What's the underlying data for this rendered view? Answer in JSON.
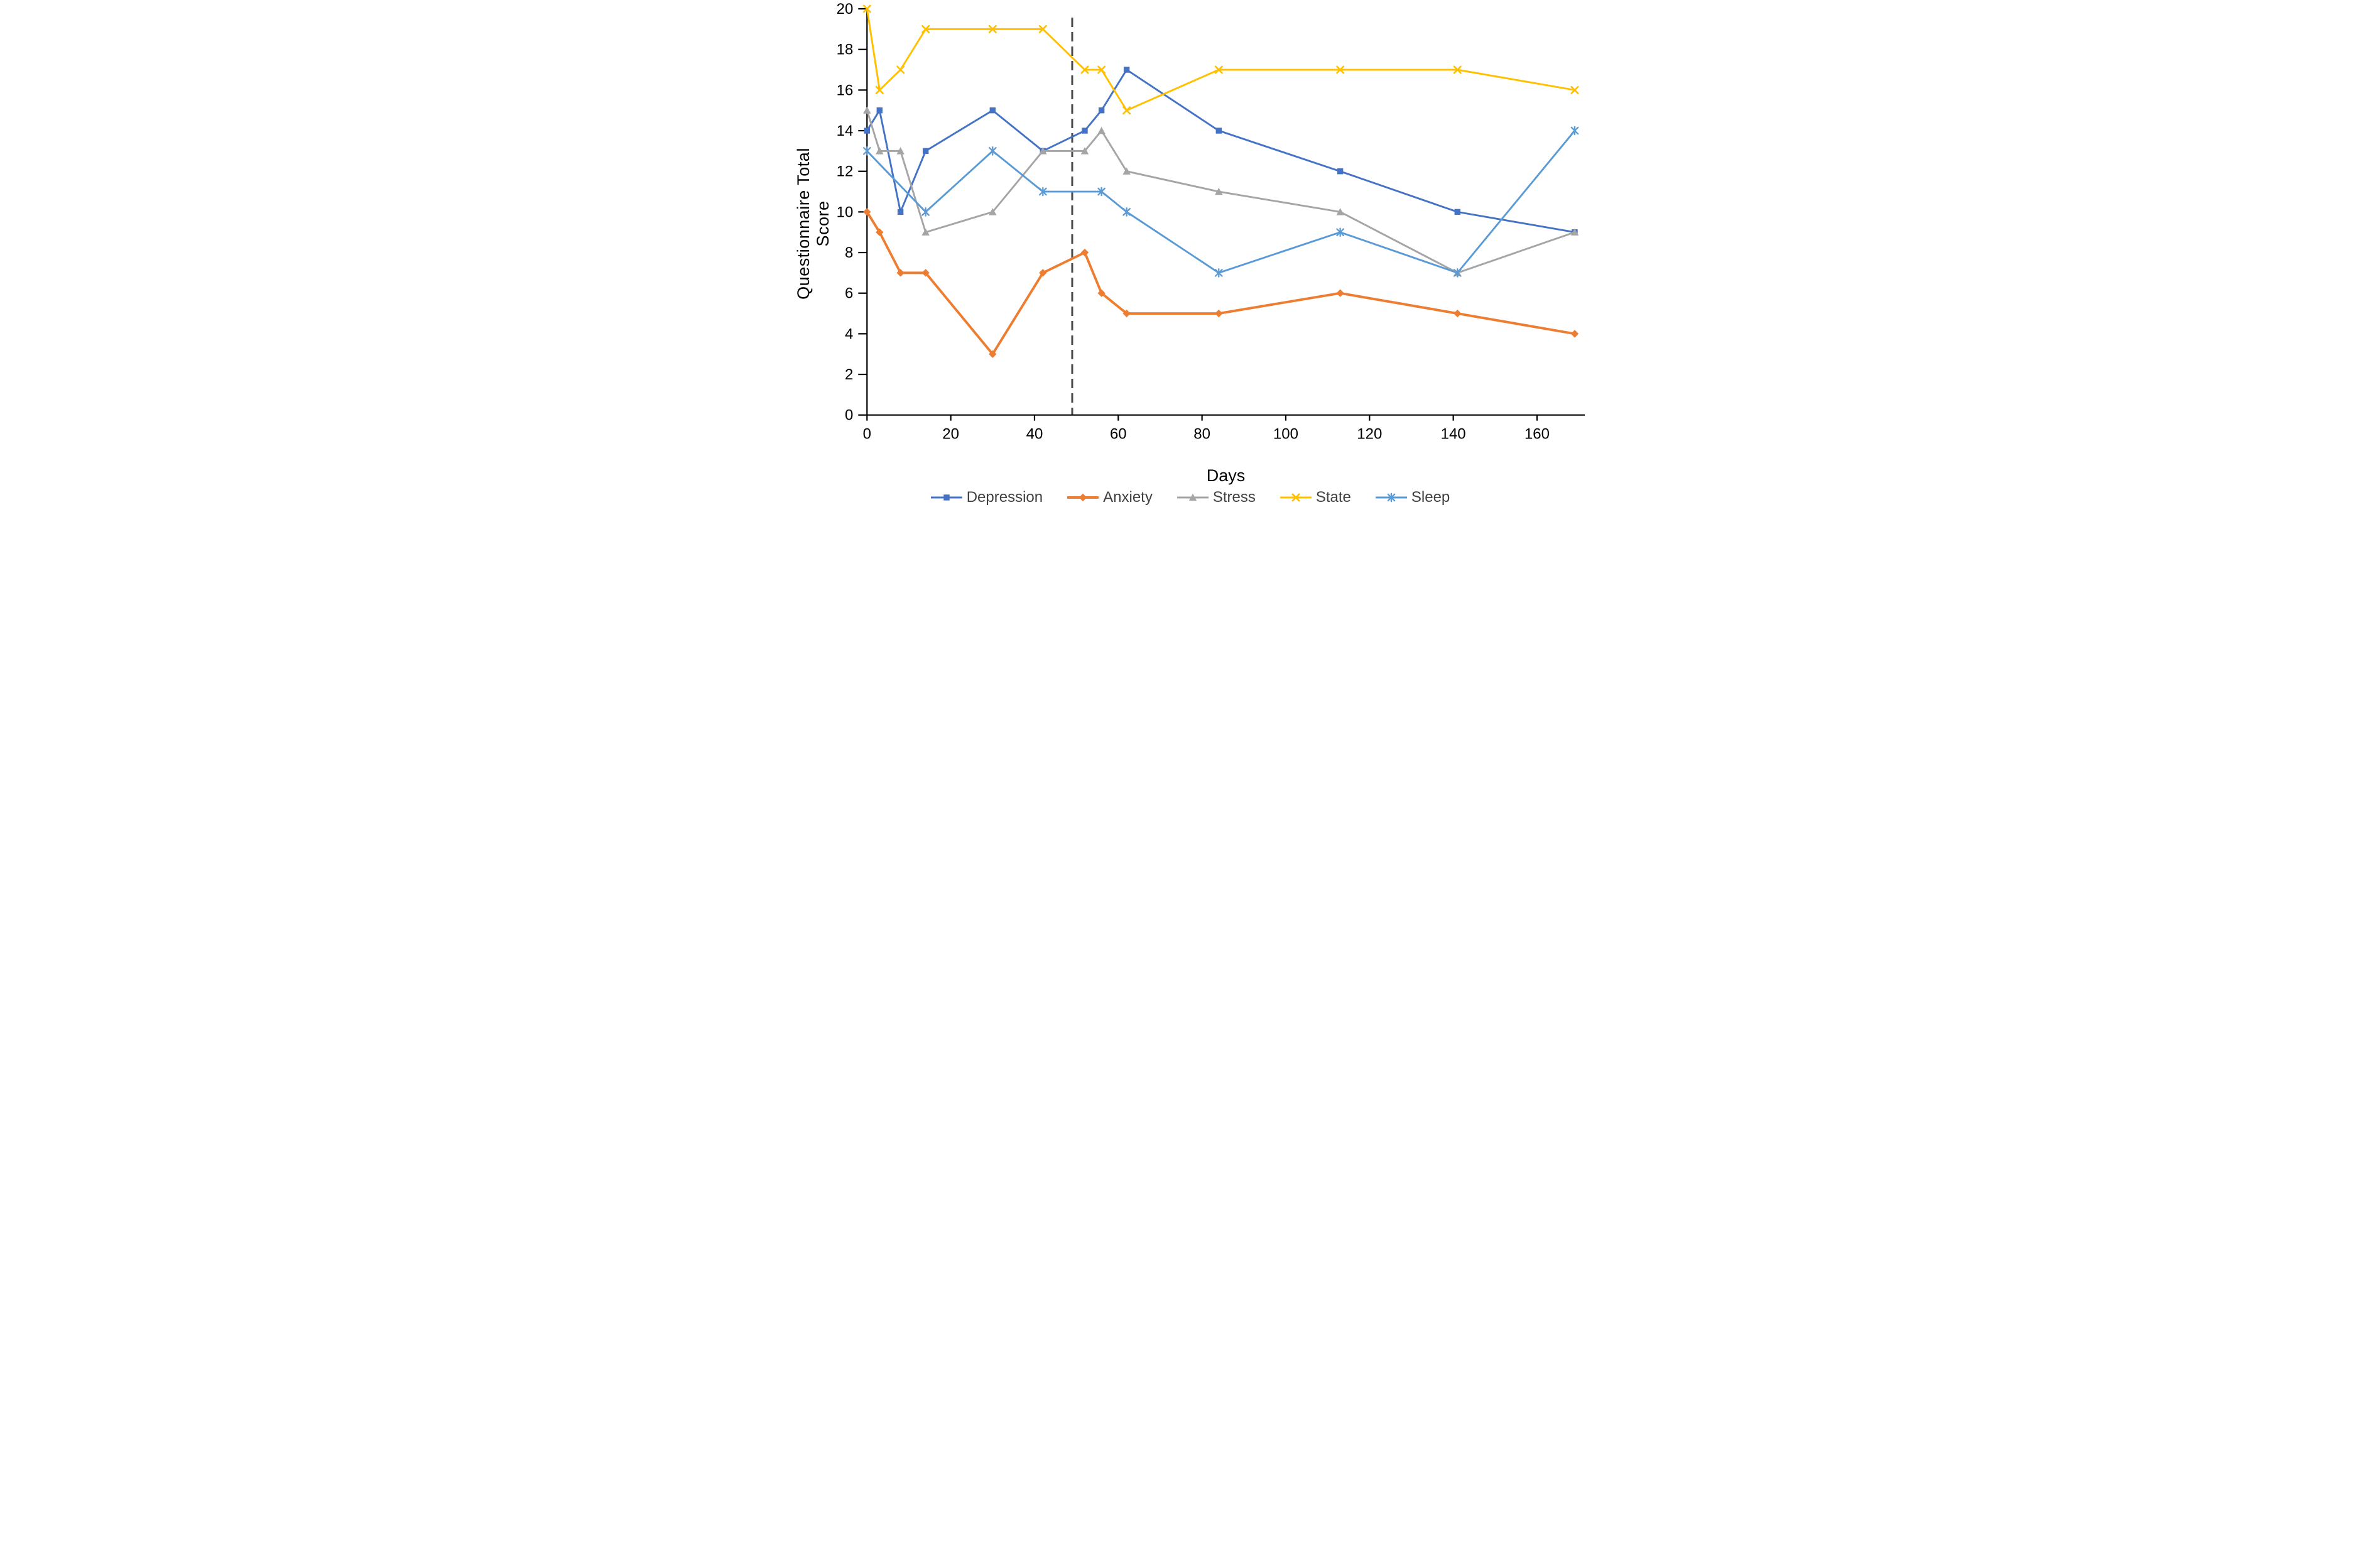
{
  "chart_data": {
    "type": "line",
    "x_values_unit": "days",
    "title": "",
    "xlabel": "Days",
    "ylabel": "Questionnaire Total Score",
    "xlim": [
      0,
      172
    ],
    "ylim": [
      0,
      20
    ],
    "x_ticks": [
      0,
      20,
      40,
      60,
      80,
      100,
      120,
      140,
      160
    ],
    "y_ticks": [
      0,
      2,
      4,
      6,
      8,
      10,
      12,
      14,
      16,
      18,
      20
    ],
    "grid": "off",
    "legend_position": "bottom-center",
    "annotation": {
      "kind": "dashed-vertical-line",
      "x": 49,
      "color": "#4a4a4a"
    },
    "series": [
      {
        "name": "Depression",
        "color": "#4472C4",
        "marker": "square",
        "x": [
          0,
          3,
          8,
          14,
          30,
          42,
          52,
          56,
          62,
          84,
          113,
          141,
          169
        ],
        "y": [
          14,
          15,
          10,
          13,
          15,
          13,
          14,
          15,
          17,
          14,
          12,
          10,
          9
        ]
      },
      {
        "name": "Anxiety",
        "color": "#ED7D31",
        "marker": "diamond",
        "x": [
          0,
          3,
          8,
          14,
          30,
          42,
          52,
          56,
          62,
          84,
          113,
          141,
          169
        ],
        "y": [
          10,
          9,
          7,
          7,
          3,
          7,
          8,
          6,
          5,
          5,
          6,
          5,
          4
        ]
      },
      {
        "name": "Stress",
        "color": "#A5A5A5",
        "marker": "triangle",
        "x": [
          0,
          3,
          8,
          14,
          30,
          42,
          52,
          56,
          62,
          84,
          113,
          141,
          169
        ],
        "y": [
          15,
          13,
          13,
          9,
          10,
          13,
          13,
          14,
          12,
          11,
          10,
          7,
          9
        ]
      },
      {
        "name": "State",
        "color": "#FFC000",
        "marker": "x",
        "x": [
          0,
          3,
          8,
          14,
          30,
          42,
          52,
          56,
          62,
          84,
          113,
          141,
          169
        ],
        "y": [
          20,
          16,
          17,
          19,
          19,
          19,
          17,
          17,
          15,
          17,
          17,
          17,
          16
        ]
      },
      {
        "name": "Sleep",
        "color": "#5B9BD5",
        "marker": "asterisk",
        "x": [
          0,
          14,
          30,
          42,
          56,
          62,
          84,
          113,
          141,
          169
        ],
        "y": [
          13,
          10,
          13,
          11,
          11,
          10,
          7,
          9,
          7,
          14
        ]
      }
    ]
  },
  "y_axis": {
    "label": "Questionnaire Total Score"
  },
  "x_axis": {
    "label": "Days"
  },
  "legend": [
    {
      "label": "Depression",
      "color": "#4472C4",
      "marker": "square"
    },
    {
      "label": "Anxiety",
      "color": "#ED7D31",
      "marker": "diamond"
    },
    {
      "label": "Stress",
      "color": "#A5A5A5",
      "marker": "triangle"
    },
    {
      "label": "State",
      "color": "#FFC000",
      "marker": "x"
    },
    {
      "label": "Sleep",
      "color": "#5B9BD5",
      "marker": "asterisk"
    }
  ],
  "text_color": "#000000",
  "axis_color": "#000000"
}
